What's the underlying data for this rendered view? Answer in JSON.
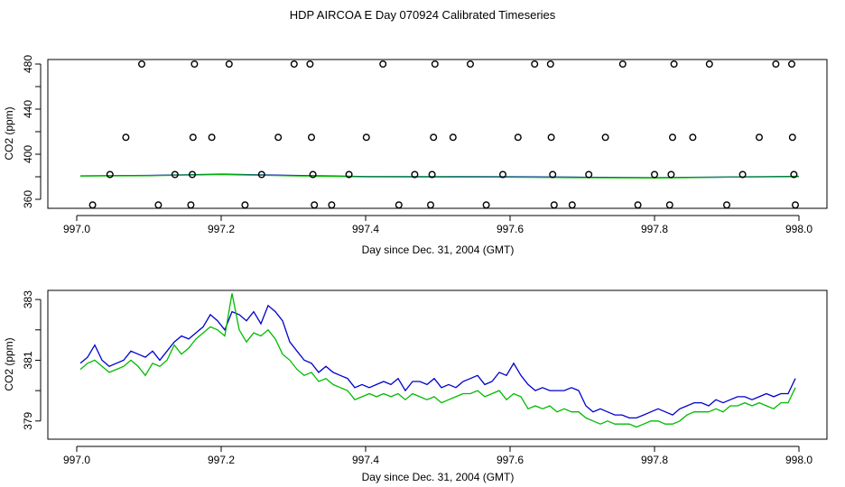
{
  "page": {
    "title": "HDP AIRCOA E  Day 070924  Calibrated Timeseries"
  },
  "colors": {
    "series_blue": "#0000cc",
    "series_green": "#00bb00",
    "points": "#000000"
  },
  "chart_data": [
    {
      "type": "line",
      "subtype": "line-with-scatter",
      "title": "",
      "xlabel": "Day since Dec. 31, 2004 (GMT)",
      "ylabel": "CO2 (ppm)",
      "xlim": [
        997.0,
        998.0
      ],
      "ylim": [
        352,
        484
      ],
      "xticks": [
        "997.0",
        "997.2",
        "997.4",
        "997.6",
        "997.8",
        "998.0"
      ],
      "yticks": [
        "360",
        "400",
        "440",
        "480"
      ],
      "yticks_minor": [
        380,
        420,
        460
      ],
      "grid": false,
      "legend": "none",
      "scatter_points": [
        {
          "x": 997.022,
          "y": 355
        },
        {
          "x": 997.046,
          "y": 382
        },
        {
          "x": 997.068,
          "y": 415
        },
        {
          "x": 997.09,
          "y": 480
        },
        {
          "x": 997.113,
          "y": 355
        },
        {
          "x": 997.136,
          "y": 382
        },
        {
          "x": 997.158,
          "y": 355
        },
        {
          "x": 997.16,
          "y": 382
        },
        {
          "x": 997.161,
          "y": 415
        },
        {
          "x": 997.163,
          "y": 480
        },
        {
          "x": 997.187,
          "y": 415
        },
        {
          "x": 997.211,
          "y": 480
        },
        {
          "x": 997.233,
          "y": 355
        },
        {
          "x": 997.256,
          "y": 382
        },
        {
          "x": 997.279,
          "y": 415
        },
        {
          "x": 997.301,
          "y": 480
        },
        {
          "x": 997.323,
          "y": 480
        },
        {
          "x": 997.325,
          "y": 415
        },
        {
          "x": 997.327,
          "y": 382
        },
        {
          "x": 997.329,
          "y": 355
        },
        {
          "x": 997.353,
          "y": 355
        },
        {
          "x": 997.377,
          "y": 382
        },
        {
          "x": 997.401,
          "y": 415
        },
        {
          "x": 997.424,
          "y": 480
        },
        {
          "x": 997.446,
          "y": 355
        },
        {
          "x": 997.468,
          "y": 382
        },
        {
          "x": 997.49,
          "y": 355
        },
        {
          "x": 997.492,
          "y": 382
        },
        {
          "x": 997.494,
          "y": 415
        },
        {
          "x": 997.496,
          "y": 480
        },
        {
          "x": 997.521,
          "y": 415
        },
        {
          "x": 997.545,
          "y": 480
        },
        {
          "x": 997.567,
          "y": 355
        },
        {
          "x": 997.59,
          "y": 382
        },
        {
          "x": 997.611,
          "y": 415
        },
        {
          "x": 997.634,
          "y": 480
        },
        {
          "x": 997.656,
          "y": 480
        },
        {
          "x": 997.657,
          "y": 415
        },
        {
          "x": 997.659,
          "y": 382
        },
        {
          "x": 997.661,
          "y": 355
        },
        {
          "x": 997.686,
          "y": 355
        },
        {
          "x": 997.709,
          "y": 382
        },
        {
          "x": 997.732,
          "y": 415
        },
        {
          "x": 997.756,
          "y": 480
        },
        {
          "x": 997.777,
          "y": 355
        },
        {
          "x": 997.8,
          "y": 382
        },
        {
          "x": 997.821,
          "y": 355
        },
        {
          "x": 997.823,
          "y": 382
        },
        {
          "x": 997.825,
          "y": 415
        },
        {
          "x": 997.827,
          "y": 480
        },
        {
          "x": 997.853,
          "y": 415
        },
        {
          "x": 997.876,
          "y": 480
        },
        {
          "x": 997.9,
          "y": 355
        },
        {
          "x": 997.922,
          "y": 382
        },
        {
          "x": 997.945,
          "y": 415
        },
        {
          "x": 997.968,
          "y": 480
        },
        {
          "x": 997.99,
          "y": 480
        },
        {
          "x": 997.991,
          "y": 415
        },
        {
          "x": 997.993,
          "y": 382
        },
        {
          "x": 997.995,
          "y": 355
        }
      ],
      "series": [
        {
          "color": "#0000cc",
          "x": [
            997.005,
            997.1,
            997.2,
            997.3,
            997.4,
            997.5,
            997.6,
            997.7,
            997.8,
            997.9,
            998.0
          ],
          "values": [
            380.8,
            381.2,
            382.3,
            381.2,
            380.2,
            380.1,
            380.0,
            379.6,
            379.2,
            379.8,
            380.4
          ]
        },
        {
          "color": "#00bb00",
          "x": [
            997.005,
            997.1,
            997.2,
            997.3,
            997.4,
            997.5,
            997.6,
            997.7,
            997.8,
            997.9,
            998.0
          ],
          "values": [
            380.6,
            381.0,
            382.0,
            380.8,
            379.9,
            379.8,
            379.6,
            379.2,
            379.0,
            379.6,
            380.1
          ]
        }
      ]
    },
    {
      "type": "line",
      "title": "",
      "xlabel": "Day since Dec. 31, 2004 (GMT)",
      "ylabel": "CO2 (ppm)",
      "xlim": [
        997.0,
        998.0
      ],
      "ylim": [
        378.4,
        383.3
      ],
      "xticks": [
        "997.0",
        "997.2",
        "997.4",
        "997.6",
        "997.8",
        "998.0"
      ],
      "yticks": [
        "379",
        "381",
        "383"
      ],
      "yticks_minor": [
        380,
        382
      ],
      "grid": false,
      "legend": "none",
      "series": [
        {
          "color": "#0000cc",
          "x": [
            997.005,
            997.015,
            997.025,
            997.035,
            997.045,
            997.055,
            997.065,
            997.075,
            997.085,
            997.095,
            997.105,
            997.115,
            997.125,
            997.135,
            997.145,
            997.155,
            997.165,
            997.175,
            997.185,
            997.195,
            997.205,
            997.215,
            997.225,
            997.235,
            997.245,
            997.255,
            997.265,
            997.275,
            997.285,
            997.295,
            997.305,
            997.315,
            997.325,
            997.335,
            997.345,
            997.355,
            997.365,
            997.375,
            997.385,
            997.395,
            997.405,
            997.415,
            997.425,
            997.435,
            997.445,
            997.455,
            997.465,
            997.475,
            997.485,
            997.495,
            997.505,
            997.515,
            997.525,
            997.535,
            997.545,
            997.555,
            997.565,
            997.575,
            997.585,
            997.595,
            997.605,
            997.615,
            997.625,
            997.635,
            997.645,
            997.655,
            997.665,
            997.675,
            997.685,
            997.695,
            997.705,
            997.715,
            997.725,
            997.735,
            997.745,
            997.755,
            997.765,
            997.775,
            997.785,
            997.795,
            997.805,
            997.815,
            997.825,
            997.835,
            997.845,
            997.855,
            997.865,
            997.875,
            997.885,
            997.895,
            997.905,
            997.915,
            997.925,
            997.935,
            997.945,
            997.955,
            997.965,
            997.975,
            997.985,
            997.995
          ],
          "values": [
            380.9,
            381.1,
            381.5,
            381.0,
            380.8,
            380.9,
            381.0,
            381.3,
            381.2,
            381.1,
            381.3,
            381.0,
            381.3,
            381.6,
            381.8,
            381.7,
            381.9,
            382.1,
            382.5,
            382.3,
            382.0,
            382.6,
            382.5,
            382.3,
            382.6,
            382.2,
            382.8,
            382.6,
            382.3,
            381.6,
            381.3,
            381.0,
            380.9,
            380.6,
            380.8,
            380.6,
            380.5,
            380.4,
            380.1,
            380.2,
            380.1,
            380.2,
            380.3,
            380.2,
            380.4,
            380.0,
            380.3,
            380.3,
            380.2,
            380.4,
            380.1,
            380.2,
            380.1,
            380.3,
            380.4,
            380.5,
            380.2,
            380.3,
            380.6,
            380.5,
            380.9,
            380.5,
            380.2,
            380.0,
            380.1,
            380.0,
            380.0,
            380.0,
            380.1,
            380.0,
            379.5,
            379.3,
            379.4,
            379.3,
            379.2,
            379.2,
            379.1,
            379.1,
            379.2,
            379.3,
            379.4,
            379.3,
            379.2,
            379.4,
            379.5,
            379.6,
            379.6,
            379.5,
            379.7,
            379.6,
            379.7,
            379.8,
            379.8,
            379.7,
            379.8,
            379.9,
            379.8,
            379.9,
            379.9,
            380.4
          ]
        },
        {
          "color": "#00bb00",
          "x": [
            997.005,
            997.015,
            997.025,
            997.035,
            997.045,
            997.055,
            997.065,
            997.075,
            997.085,
            997.095,
            997.105,
            997.115,
            997.125,
            997.135,
            997.145,
            997.155,
            997.165,
            997.175,
            997.185,
            997.195,
            997.205,
            997.215,
            997.225,
            997.235,
            997.245,
            997.255,
            997.265,
            997.275,
            997.285,
            997.295,
            997.305,
            997.315,
            997.325,
            997.335,
            997.345,
            997.355,
            997.365,
            997.375,
            997.385,
            997.395,
            997.405,
            997.415,
            997.425,
            997.435,
            997.445,
            997.455,
            997.465,
            997.475,
            997.485,
            997.495,
            997.505,
            997.515,
            997.525,
            997.535,
            997.545,
            997.555,
            997.565,
            997.575,
            997.585,
            997.595,
            997.605,
            997.615,
            997.625,
            997.635,
            997.645,
            997.655,
            997.665,
            997.675,
            997.685,
            997.695,
            997.705,
            997.715,
            997.725,
            997.735,
            997.745,
            997.755,
            997.765,
            997.775,
            997.785,
            997.795,
            997.805,
            997.815,
            997.825,
            997.835,
            997.845,
            997.855,
            997.865,
            997.875,
            997.885,
            997.895,
            997.905,
            997.915,
            997.925,
            997.935,
            997.945,
            997.955,
            997.965,
            997.975,
            997.985,
            997.995
          ],
          "values": [
            380.7,
            380.9,
            381.0,
            380.8,
            380.6,
            380.7,
            380.8,
            381.0,
            380.8,
            380.5,
            380.9,
            380.8,
            381.0,
            381.5,
            381.2,
            381.4,
            381.7,
            381.9,
            382.1,
            382.0,
            381.8,
            383.2,
            382.0,
            381.6,
            381.9,
            381.8,
            382.0,
            381.7,
            381.2,
            381.0,
            380.7,
            380.5,
            380.6,
            380.3,
            380.4,
            380.2,
            380.1,
            380.0,
            379.7,
            379.8,
            379.9,
            379.8,
            379.9,
            379.8,
            379.9,
            379.7,
            379.9,
            379.8,
            379.7,
            379.8,
            379.6,
            379.7,
            379.8,
            379.9,
            379.9,
            380.0,
            379.8,
            379.9,
            380.0,
            379.7,
            379.9,
            379.8,
            379.4,
            379.5,
            379.4,
            379.5,
            379.3,
            379.4,
            379.3,
            379.3,
            379.1,
            379.0,
            378.9,
            379.0,
            378.9,
            378.9,
            378.9,
            378.8,
            378.9,
            379.0,
            379.0,
            378.9,
            378.9,
            379.0,
            379.2,
            379.3,
            379.3,
            379.3,
            379.4,
            379.3,
            379.5,
            379.5,
            379.6,
            379.5,
            379.6,
            379.5,
            379.4,
            379.6,
            379.6,
            380.1
          ]
        }
      ]
    }
  ]
}
